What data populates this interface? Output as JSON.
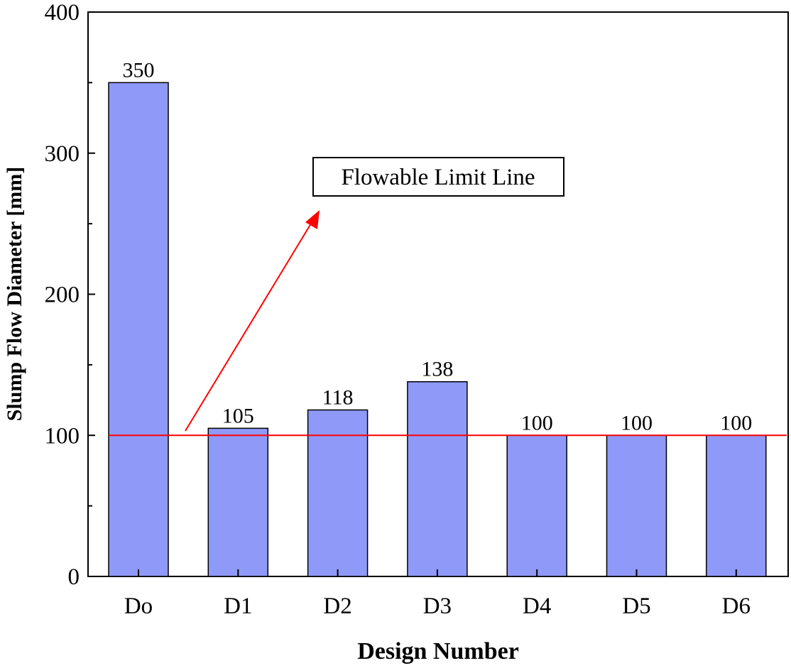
{
  "chart_data": {
    "type": "bar",
    "categories": [
      "Do",
      "D1",
      "D2",
      "D3",
      "D4",
      "D5",
      "D6"
    ],
    "values": [
      350,
      105,
      118,
      138,
      100,
      100,
      100
    ],
    "data_labels": [
      "350",
      "105",
      "118",
      "138",
      "100",
      "100",
      "100"
    ],
    "xlabel": "Design Number",
    "ylabel": "Slump Flow Diameter [mm]",
    "ylim": [
      0,
      400
    ],
    "yticks": [
      0,
      100,
      200,
      300,
      400
    ],
    "grid": false,
    "bar_color": "#8f99f8",
    "reference_line": {
      "y": 100,
      "color": "#ff0000"
    },
    "annotation": {
      "text": "Flowable Limit Line",
      "arrow_color": "#ff0000"
    }
  }
}
